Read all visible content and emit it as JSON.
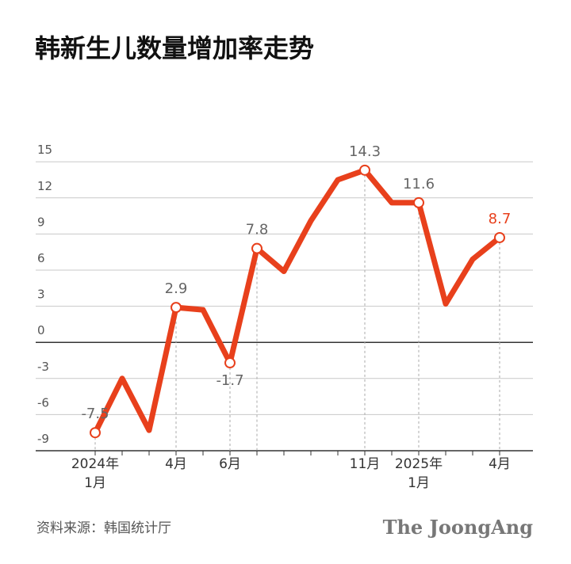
{
  "chart_data": {
    "type": "line",
    "title": "韩新生儿数量增加率走势",
    "categories": [
      "2024年\n1月",
      null,
      null,
      "4月",
      null,
      "6月",
      null,
      null,
      null,
      null,
      "11月",
      null,
      "2025年\n1月",
      null,
      null,
      "4月"
    ],
    "series": [
      {
        "color": "#e8401c",
        "values": [
          -7.5,
          -3.0,
          -7.3,
          2.9,
          2.7,
          -1.7,
          7.8,
          5.9,
          10.1,
          13.5,
          14.3,
          11.6,
          11.6,
          3.2,
          6.9,
          8.7
        ],
        "value_labels": [
          "-7.5",
          null,
          null,
          "2.9",
          null,
          "-1.7",
          "7.8",
          null,
          null,
          null,
          "14.3",
          null,
          "11.6",
          null,
          null,
          "8.7"
        ]
      }
    ],
    "ylim": [
      -9,
      16
    ],
    "yticks": [
      -9,
      -6,
      -3,
      0,
      3,
      6,
      9,
      12,
      15
    ],
    "grid": true,
    "source": "资料来源：韩国统计厅",
    "brand": "The JoongAng"
  }
}
